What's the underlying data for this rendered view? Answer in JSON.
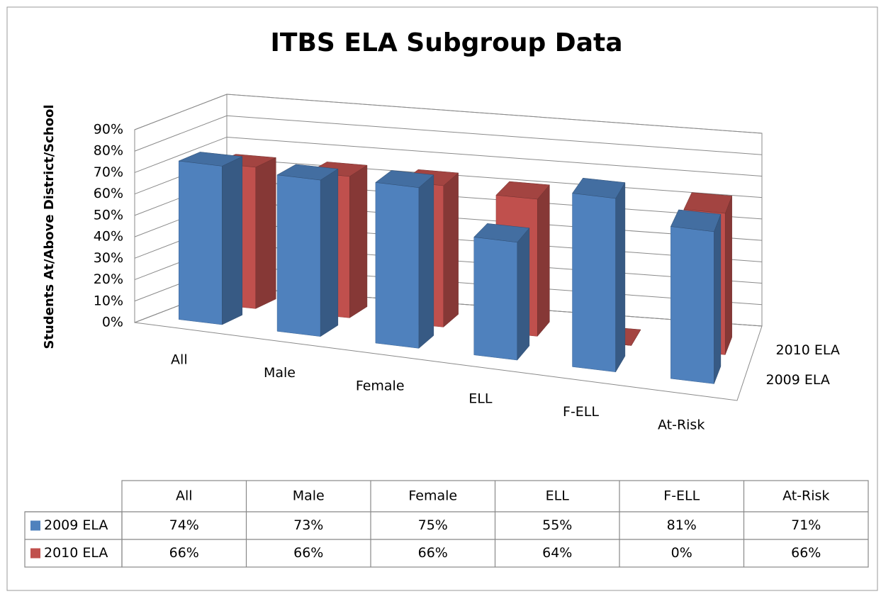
{
  "chart_data": {
    "type": "bar3d",
    "title": "ITBS ELA Subgroup Data",
    "y_label": "Students At/Above District/School",
    "categories": [
      "All",
      "Male",
      "Female",
      "ELL",
      "F-ELL",
      "At-Risk"
    ],
    "series": [
      {
        "name": "2009 ELA",
        "color": "#4f81bd",
        "values": [
          74,
          73,
          75,
          55,
          81,
          71
        ],
        "value_labels": [
          "74%",
          "73%",
          "75%",
          "55%",
          "81%",
          "71%"
        ]
      },
      {
        "name": "2010 ELA",
        "color": "#c0504d",
        "values": [
          66,
          66,
          66,
          64,
          0,
          66
        ],
        "value_labels": [
          "66%",
          "66%",
          "66%",
          "64%",
          "0%",
          "66%"
        ]
      }
    ],
    "ylim": [
      0,
      90
    ],
    "yticks": [
      {
        "value": 0,
        "label": "0%"
      },
      {
        "value": 10,
        "label": "10%"
      },
      {
        "value": 20,
        "label": "20%"
      },
      {
        "value": 30,
        "label": "30%"
      },
      {
        "value": 40,
        "label": "40%"
      },
      {
        "value": 50,
        "label": "50%"
      },
      {
        "value": 60,
        "label": "60%"
      },
      {
        "value": 70,
        "label": "70%"
      },
      {
        "value": 80,
        "label": "80%"
      },
      {
        "value": 90,
        "label": "90%"
      }
    ],
    "grid": true,
    "data_table": true
  }
}
